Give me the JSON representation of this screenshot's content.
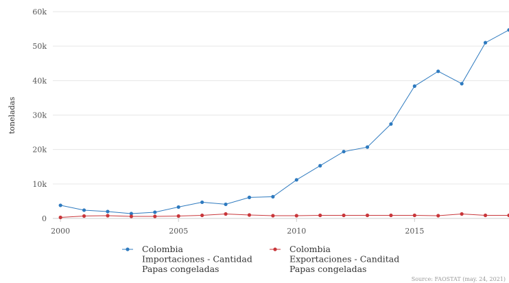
{
  "chart_data": {
    "type": "line",
    "ylabel": "toneladas",
    "xlim": [
      1999.85,
      2019.0
    ],
    "ylim": [
      0,
      60000
    ],
    "y_ticks": [
      0,
      10000,
      20000,
      30000,
      40000,
      50000,
      60000
    ],
    "y_tick_labels": [
      "0",
      "10k",
      "20k",
      "30k",
      "40k",
      "50k",
      "60k"
    ],
    "x_ticks": [
      2000,
      2005,
      2010,
      2015
    ],
    "x_tick_labels": [
      "2000",
      "2005",
      "2010",
      "2015"
    ],
    "grid": true,
    "legend_position": "bottom",
    "x": [
      2000,
      2001,
      2002,
      2003,
      2004,
      2005,
      2006,
      2007,
      2008,
      2009,
      2010,
      2011,
      2012,
      2013,
      2014,
      2015,
      2016,
      2017,
      2018,
      2019
    ],
    "series": [
      {
        "legend_lines": [
          "Colombia",
          "Importaciones - Cantidad",
          "Papas congeladas"
        ],
        "color": "#2e7abf",
        "values": [
          3800,
          2400,
          2000,
          1400,
          1800,
          3300,
          4700,
          4100,
          6100,
          6300,
          11200,
          15300,
          19400,
          20700,
          27400,
          38400,
          42700,
          39100,
          51000,
          54700
        ]
      },
      {
        "legend_lines": [
          "Colombia",
          "Exportaciones - Canditad",
          "Papas congeladas"
        ],
        "color": "#c8363a",
        "values": [
          300,
          700,
          800,
          600,
          600,
          700,
          900,
          1300,
          1000,
          800,
          800,
          900,
          900,
          900,
          900,
          900,
          800,
          1300,
          900,
          900
        ]
      }
    ],
    "source": "Source: FAOSTAT (may. 24, 2021)"
  }
}
